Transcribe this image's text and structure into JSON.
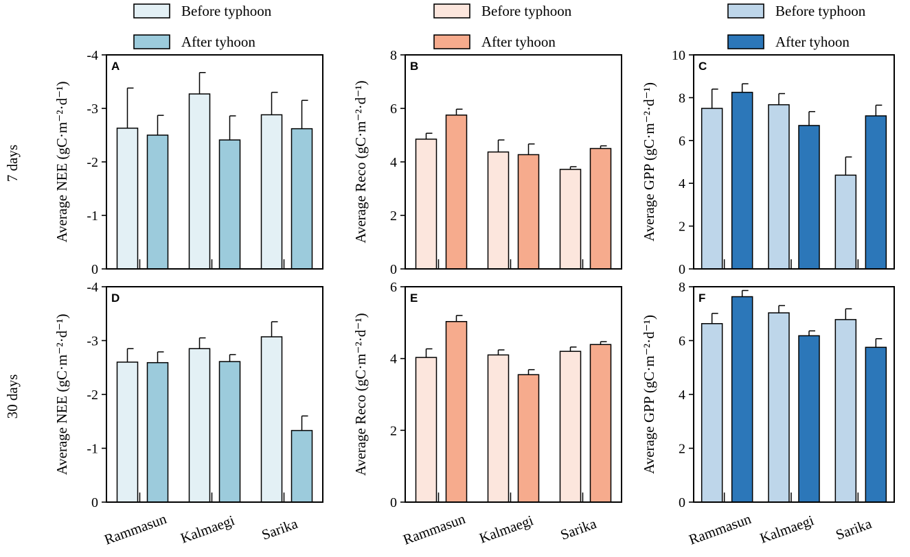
{
  "row_labels": [
    "7 days",
    "30 days"
  ],
  "legend": {
    "before_label": "Before typhoon",
    "after_label": "After tyhoon"
  },
  "colors": {
    "nee_before": "#e3f0f5",
    "nee_after": "#9ccbdc",
    "reco_before": "#fce6dd",
    "reco_after": "#f6ab8d",
    "gpp_before": "#bed6ea",
    "gpp_after": "#2c77b9"
  },
  "chart_data": [
    {
      "panel": "A",
      "type": "bar",
      "metric": "NEE",
      "row": 0,
      "col": 0,
      "ylabel": "Average NEE (gC·m⁻²·d⁻¹)",
      "categories": [
        "Rammasun",
        "Kalmaegi",
        "Sarika"
      ],
      "ylim": [
        0,
        -4
      ],
      "yticks": [
        0,
        -1,
        -2,
        -3,
        -4
      ],
      "tick_labels": [
        "0",
        "-1",
        "-2",
        "-3",
        "-4"
      ],
      "series": [
        {
          "name": "Before typhoon",
          "values": [
            -2.63,
            -3.27,
            -2.88
          ],
          "errors": [
            0.75,
            0.4,
            0.42
          ]
        },
        {
          "name": "After tyhoon",
          "values": [
            -2.5,
            -2.41,
            -2.62
          ],
          "errors": [
            0.37,
            0.45,
            0.53
          ]
        }
      ]
    },
    {
      "panel": "B",
      "type": "bar",
      "metric": "Reco",
      "row": 0,
      "col": 1,
      "ylabel": "Average Reco (gC·m⁻²·d⁻¹)",
      "categories": [
        "Rammasun",
        "Kalmaegi",
        "Sarika"
      ],
      "ylim": [
        0,
        8
      ],
      "yticks": [
        0,
        2,
        4,
        6,
        8
      ],
      "tick_labels": [
        "0",
        "2",
        "4",
        "6",
        "8"
      ],
      "series": [
        {
          "name": "Before typhoon",
          "values": [
            4.85,
            4.37,
            3.72
          ],
          "errors": [
            0.22,
            0.45,
            0.1
          ]
        },
        {
          "name": "After tyhoon",
          "values": [
            5.75,
            4.27,
            4.5
          ],
          "errors": [
            0.22,
            0.4,
            0.1
          ]
        }
      ]
    },
    {
      "panel": "C",
      "type": "bar",
      "metric": "GPP",
      "row": 0,
      "col": 2,
      "ylabel": "Average GPP (gC·m⁻²·d⁻¹)",
      "categories": [
        "Rammasun",
        "Kalmaegi",
        "Sarika"
      ],
      "ylim": [
        0,
        10
      ],
      "yticks": [
        0,
        2,
        4,
        6,
        8,
        10
      ],
      "tick_labels": [
        "0",
        "2",
        "4",
        "6",
        "8",
        "10"
      ],
      "series": [
        {
          "name": "Before typhoon",
          "values": [
            7.5,
            7.67,
            4.38
          ],
          "errors": [
            0.9,
            0.52,
            0.85
          ]
        },
        {
          "name": "After tyhoon",
          "values": [
            8.25,
            6.7,
            7.15
          ],
          "errors": [
            0.4,
            0.65,
            0.5
          ]
        }
      ]
    },
    {
      "panel": "D",
      "type": "bar",
      "metric": "NEE",
      "row": 1,
      "col": 0,
      "ylabel": "Average NEE (gC·m⁻²·d⁻¹)",
      "categories": [
        "Rammasun",
        "Kalmaegi",
        "Sarika"
      ],
      "ylim": [
        0,
        -4
      ],
      "yticks": [
        0,
        -1,
        -2,
        -3,
        -4
      ],
      "tick_labels": [
        "0",
        "-1",
        "-2",
        "-3",
        "-4"
      ],
      "series": [
        {
          "name": "Before typhoon",
          "values": [
            -2.6,
            -2.85,
            -3.07
          ],
          "errors": [
            0.25,
            0.2,
            0.28
          ]
        },
        {
          "name": "After tyhoon",
          "values": [
            -2.59,
            -2.61,
            -1.33
          ],
          "errors": [
            0.2,
            0.13,
            0.27
          ]
        }
      ]
    },
    {
      "panel": "E",
      "type": "bar",
      "metric": "Reco",
      "row": 1,
      "col": 1,
      "ylabel": "Average Reco (gC·m⁻²·d⁻¹)",
      "categories": [
        "Rammasun",
        "Kalmaegi",
        "Sarika"
      ],
      "ylim": [
        0,
        6
      ],
      "yticks": [
        0,
        2,
        4,
        6
      ],
      "tick_labels": [
        "0",
        "2",
        "4",
        "6"
      ],
      "series": [
        {
          "name": "Before typhoon",
          "values": [
            4.03,
            4.1,
            4.2
          ],
          "errors": [
            0.24,
            0.14,
            0.12
          ]
        },
        {
          "name": "After tyhoon",
          "values": [
            5.03,
            3.55,
            4.39
          ],
          "errors": [
            0.17,
            0.14,
            0.08
          ]
        }
      ]
    },
    {
      "panel": "F",
      "type": "bar",
      "metric": "GPP",
      "row": 1,
      "col": 2,
      "ylabel": "Average GPP (gC·m⁻²·d⁻¹)",
      "categories": [
        "Rammasun",
        "Kalmaegi",
        "Sarika"
      ],
      "ylim": [
        0,
        8
      ],
      "yticks": [
        0,
        2,
        4,
        6,
        8
      ],
      "tick_labels": [
        "0",
        "2",
        "4",
        "6",
        "8"
      ],
      "series": [
        {
          "name": "Before typhoon",
          "values": [
            6.63,
            7.03,
            6.78
          ],
          "errors": [
            0.38,
            0.27,
            0.4
          ]
        },
        {
          "name": "After tyhoon",
          "values": [
            7.63,
            6.18,
            5.75
          ],
          "errors": [
            0.23,
            0.18,
            0.32
          ]
        }
      ]
    }
  ]
}
